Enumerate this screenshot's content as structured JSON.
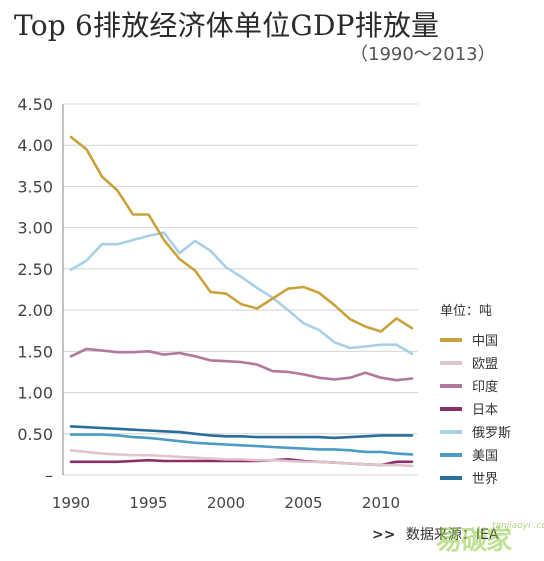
{
  "page": {
    "title": "Top 6排放经济体单位GDP排放量",
    "subtitle": "（1990～2013）",
    "source_label": "数据来源：IEA",
    "source_arrow": ">>",
    "watermark": "易碳家",
    "watermark_sub": "tanjiaoyi .com"
  },
  "chart_data": {
    "type": "line",
    "title": "Top 6排放经济体单位GDP排放量",
    "subtitle": "（1990～2013）",
    "xlabel": "",
    "ylabel": "",
    "xlim": [
      1990,
      2012
    ],
    "ylim": [
      0,
      4.5
    ],
    "x_ticks": [
      1990,
      1995,
      2000,
      2005,
      2010
    ],
    "y_ticks": [
      0,
      0.5,
      1.0,
      1.5,
      2.0,
      2.5,
      3.0,
      3.5,
      4.0,
      4.5
    ],
    "y_tick_labels": [
      "–",
      "0.50",
      "1.00",
      "1.50",
      "2.00",
      "2.50",
      "3.00",
      "3.50",
      "4.00",
      "4.50"
    ],
    "grid": true,
    "legend_title": "单位：吨",
    "legend_position": "right",
    "x": [
      1990,
      1991,
      1992,
      1993,
      1994,
      1995,
      1996,
      1997,
      1998,
      1999,
      2000,
      2001,
      2002,
      2003,
      2004,
      2005,
      2006,
      2007,
      2008,
      2009,
      2010,
      2011,
      2012
    ],
    "series": [
      {
        "name": "中国",
        "color": "#c9a23a",
        "values": [
          4.1,
          3.95,
          3.62,
          3.45,
          3.16,
          3.16,
          2.85,
          2.62,
          2.48,
          2.22,
          2.2,
          2.07,
          2.02,
          2.14,
          2.26,
          2.28,
          2.21,
          2.06,
          1.89,
          1.8,
          1.74,
          1.9,
          1.78
        ]
      },
      {
        "name": "欧盟",
        "color": "#e0c4cf",
        "values": [
          0.3,
          0.28,
          0.26,
          0.25,
          0.24,
          0.24,
          0.23,
          0.22,
          0.21,
          0.2,
          0.19,
          0.19,
          0.18,
          0.18,
          0.17,
          0.16,
          0.16,
          0.15,
          0.14,
          0.13,
          0.12,
          0.12,
          0.11
        ]
      },
      {
        "name": "印度",
        "color": "#b0789a",
        "values": [
          1.44,
          1.53,
          1.51,
          1.49,
          1.49,
          1.5,
          1.46,
          1.48,
          1.44,
          1.39,
          1.38,
          1.37,
          1.34,
          1.26,
          1.25,
          1.22,
          1.18,
          1.16,
          1.18,
          1.24,
          1.18,
          1.15,
          1.17
        ]
      },
      {
        "name": "日本",
        "color": "#8a2f6a",
        "values": [
          0.16,
          0.16,
          0.16,
          0.16,
          0.17,
          0.18,
          0.17,
          0.17,
          0.17,
          0.17,
          0.17,
          0.17,
          0.17,
          0.18,
          0.19,
          0.17,
          0.16,
          0.15,
          0.14,
          0.13,
          0.12,
          0.16,
          0.16
        ]
      },
      {
        "name": "俄罗斯",
        "color": "#a8d0e6",
        "values": [
          2.49,
          2.6,
          2.8,
          2.8,
          2.85,
          2.9,
          2.94,
          2.69,
          2.84,
          2.72,
          2.52,
          2.4,
          2.27,
          2.15,
          2.0,
          1.84,
          1.76,
          1.61,
          1.54,
          1.56,
          1.58,
          1.58,
          1.47
        ]
      },
      {
        "name": "美国",
        "color": "#4a9cc4",
        "values": [
          0.49,
          0.49,
          0.49,
          0.48,
          0.46,
          0.45,
          0.43,
          0.41,
          0.39,
          0.38,
          0.37,
          0.36,
          0.35,
          0.34,
          0.33,
          0.32,
          0.31,
          0.31,
          0.3,
          0.28,
          0.28,
          0.26,
          0.25
        ]
      },
      {
        "name": "世界",
        "color": "#2a6e9e",
        "values": [
          0.59,
          0.58,
          0.57,
          0.56,
          0.55,
          0.54,
          0.53,
          0.52,
          0.5,
          0.48,
          0.47,
          0.47,
          0.46,
          0.46,
          0.46,
          0.46,
          0.46,
          0.45,
          0.46,
          0.47,
          0.48,
          0.48,
          0.48
        ]
      }
    ]
  }
}
